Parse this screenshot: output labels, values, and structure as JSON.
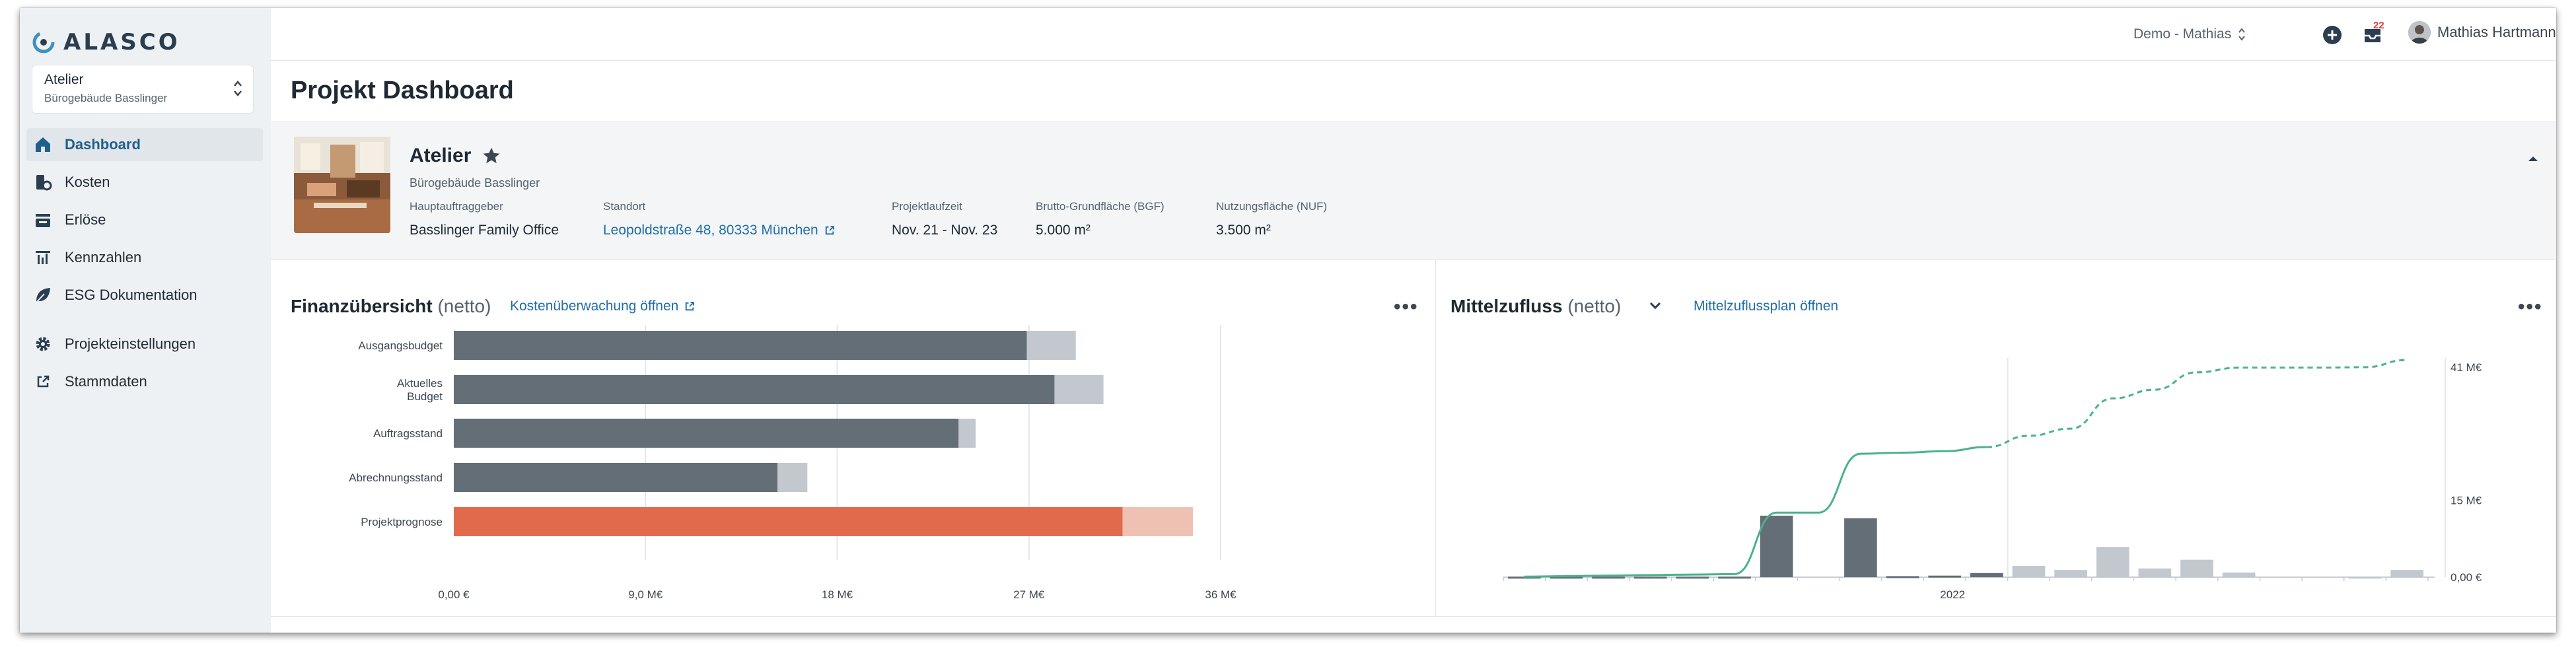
{
  "app": {
    "logo": "ALASCO",
    "project_selector": {
      "name": "Atelier",
      "subtitle": "Bürogebäude Basslinger"
    }
  },
  "sidebar": {
    "items": [
      {
        "label": "Dashboard",
        "icon": "home-icon",
        "active": true
      },
      {
        "label": "Kosten",
        "icon": "cost-icon",
        "active": false
      },
      {
        "label": "Erlöse",
        "icon": "revenue-icon",
        "active": false
      },
      {
        "label": "Kennzahlen",
        "icon": "chart-icon",
        "active": false
      },
      {
        "label": "ESG Dokumentation",
        "icon": "leaf-icon",
        "active": false
      }
    ],
    "bottom_items": [
      {
        "label": "Projekteinstellungen",
        "icon": "gear-icon"
      },
      {
        "label": "Stammdaten",
        "icon": "external-link-icon"
      }
    ]
  },
  "topbar": {
    "org": "Demo - Mathias",
    "notifications_count": "22",
    "user_name": "Mathias Hartmann"
  },
  "page": {
    "title": "Projekt Dashboard"
  },
  "project": {
    "name": "Atelier",
    "subtitle": "Bürogebäude Basslinger",
    "meta": [
      {
        "label": "Hauptauftraggeber",
        "value": "Basslinger Family Office",
        "link": false
      },
      {
        "label": "Standort",
        "value": "Leopoldstraße 48, 80333 München",
        "link": true
      },
      {
        "label": "Projektlaufzeit",
        "value": "Nov. 21 - Nov. 23",
        "link": false
      },
      {
        "label": "Brutto-Grundfläche (BGF)",
        "value": "5.000 m²",
        "link": false
      },
      {
        "label": "Nutzungsfläche (NUF)",
        "value": "3.500 m²",
        "link": false
      }
    ]
  },
  "finance_card": {
    "title": "Finanzübersicht",
    "title_suffix": "(netto)",
    "link": "Kostenüberwachung öffnen",
    "menu": "•••"
  },
  "cashflow_card": {
    "title": "Mittelzufluss",
    "title_suffix": "(netto)",
    "link": "Mittelzuflussplan öffnen",
    "menu": "•••"
  },
  "chart_data": [
    {
      "type": "bar",
      "orientation": "horizontal",
      "categories": [
        [
          "Ausgangsbudget"
        ],
        [
          "Aktuelles",
          "Budget"
        ],
        [
          "Auftragsstand"
        ],
        [
          "Abrechnungsstand"
        ],
        [
          "Projektprognose"
        ]
      ],
      "series": [
        {
          "values": [
            26.9,
            28.2,
            23.7,
            15.2,
            31.4
          ]
        },
        {
          "values": [
            2.3,
            2.3,
            0.8,
            1.4,
            3.3
          ]
        }
      ],
      "xticks": [
        "0,00 €",
        "9,0 M€",
        "18 M€",
        "27 M€",
        "36 M€"
      ],
      "xlim": [
        0,
        36
      ],
      "colors": {
        "primary": "#646e76",
        "secondary": "#c2c8ce",
        "forecast_primary": "#e16a4c",
        "forecast_secondary": "#efc1b3"
      }
    },
    {
      "type": "bar+line",
      "x_label": "2022",
      "yticks": [
        "0,00 €",
        "15 M€",
        "41 M€"
      ],
      "ylim": [
        0,
        41
      ],
      "bars": [
        {
          "value": 0.1,
          "actual": true
        },
        {
          "value": 0.1,
          "actual": true
        },
        {
          "value": 0.1,
          "actual": true
        },
        {
          "value": 0.1,
          "actual": true
        },
        {
          "value": 0.1,
          "actual": true
        },
        {
          "value": 0.1,
          "actual": true
        },
        {
          "value": 12.0,
          "actual": true
        },
        {
          "value": 0,
          "actual": true
        },
        {
          "value": 11.5,
          "actual": true
        },
        {
          "value": 0.2,
          "actual": true
        },
        {
          "value": 0.3,
          "actual": true
        },
        {
          "value": 0.8,
          "actual": true
        },
        {
          "value": 2.2,
          "actual": false
        },
        {
          "value": 1.4,
          "actual": false
        },
        {
          "value": 5.9,
          "actual": false
        },
        {
          "value": 1.7,
          "actual": false
        },
        {
          "value": 3.4,
          "actual": false
        },
        {
          "value": 0.9,
          "actual": false
        },
        {
          "value": 0,
          "actual": false
        },
        {
          "value": 0,
          "actual": false
        },
        {
          "value": 0.1,
          "actual": false
        },
        {
          "value": 1.4,
          "actual": false
        }
      ],
      "cumulative": [
        0.1,
        0.2,
        0.3,
        0.4,
        0.5,
        0.6,
        12.6,
        12.6,
        24.1,
        24.3,
        24.6,
        25.4,
        27.6,
        29.0,
        34.9,
        36.6,
        40.0,
        40.9,
        40.9,
        40.9,
        41.0,
        42.4
      ],
      "actual_until_index": 11,
      "colors": {
        "actual": "#646e76",
        "forecast": "#c2c8ce",
        "line": "#4ab28b"
      }
    }
  ]
}
